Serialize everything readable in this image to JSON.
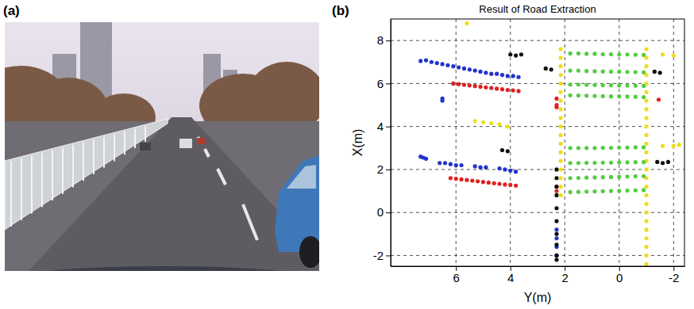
{
  "panels": {
    "a": {
      "label": "(a)"
    },
    "b": {
      "label": "(b)"
    }
  },
  "chart_data": {
    "type": "scatter",
    "title": "Result of Road Extraction",
    "x_label": "Y(m)",
    "y_label": "X(m)",
    "xlim": [
      8.4,
      -2.4
    ],
    "ylim": [
      -2.5,
      9.0
    ],
    "xticks": [
      6,
      4,
      2,
      0,
      -2
    ],
    "yticks": [
      -2,
      0,
      2,
      4,
      6,
      8
    ],
    "grid": true,
    "marker": "circle",
    "series": [
      {
        "color": "#2233cc",
        "x": [
          7.3,
          7.1,
          6.9,
          6.7,
          6.5,
          6.3,
          6.1,
          5.9,
          5.7,
          5.5,
          5.3,
          5.1,
          4.9,
          4.7,
          4.5,
          4.3,
          4.1,
          3.9,
          3.7,
          6.5,
          6.5,
          7.3,
          7.2,
          7.1,
          6.6,
          6.4,
          6.2,
          6.0,
          5.8,
          5.3,
          5.1,
          4.9,
          4.4,
          4.2,
          4.0,
          3.8,
          2.3,
          2.3,
          2.3,
          2.3
        ],
        "values": [
          7.05,
          7.08,
          7.0,
          6.95,
          6.9,
          6.85,
          6.8,
          6.75,
          6.7,
          6.65,
          6.6,
          6.55,
          6.5,
          6.45,
          6.45,
          6.4,
          6.35,
          6.35,
          6.3,
          5.3,
          5.2,
          2.6,
          2.55,
          2.5,
          2.3,
          2.3,
          2.25,
          2.2,
          2.2,
          2.15,
          2.1,
          2.1,
          2.05,
          2.0,
          1.95,
          1.9,
          -0.8,
          -1.2,
          -1.6,
          -2.0
        ]
      },
      {
        "color": "#dd2222",
        "x": [
          6.1,
          5.9,
          5.7,
          5.5,
          5.3,
          5.1,
          4.9,
          4.7,
          4.5,
          4.3,
          4.1,
          3.9,
          3.7,
          6.2,
          6.0,
          5.8,
          5.6,
          5.4,
          5.2,
          5.0,
          4.8,
          4.6,
          4.4,
          4.2,
          4.0,
          3.8,
          2.3,
          2.3,
          2.3,
          2.3,
          2.3,
          -1.45
        ],
        "values": [
          6.0,
          5.97,
          5.94,
          5.91,
          5.88,
          5.85,
          5.82,
          5.79,
          5.76,
          5.73,
          5.7,
          5.68,
          5.65,
          1.6,
          1.57,
          1.54,
          1.51,
          1.48,
          1.45,
          1.42,
          1.39,
          1.36,
          1.33,
          1.3,
          1.28,
          1.25,
          5.3,
          5.0,
          4.9,
          1.2,
          1.0,
          5.25
        ]
      },
      {
        "color": "#111111",
        "x": [
          4.0,
          3.8,
          3.6,
          2.7,
          2.5,
          4.3,
          4.1,
          2.3,
          2.3,
          2.3,
          2.3,
          2.3,
          2.3,
          2.3,
          2.3,
          2.3,
          2.3,
          -1.3,
          -1.5,
          -1.4,
          -1.6,
          -1.8
        ],
        "values": [
          7.35,
          7.3,
          7.35,
          6.7,
          6.65,
          2.9,
          2.85,
          2.0,
          1.6,
          1.2,
          0.8,
          0.2,
          -0.4,
          -1.0,
          -1.5,
          -2.0,
          -2.2,
          6.55,
          6.5,
          2.35,
          2.3,
          2.35
        ]
      },
      {
        "color": "#eedd22",
        "x": [
          5.6,
          5.3,
          5.0,
          4.7,
          4.4,
          4.1,
          2.15,
          2.15,
          2.15,
          2.15,
          2.15,
          2.15,
          2.15,
          2.15,
          2.15,
          2.15,
          2.15,
          2.15,
          2.15,
          2.15,
          2.15,
          2.15,
          2.15,
          2.15,
          -1.0,
          -1.0,
          -1.0,
          -1.0,
          -1.0,
          -1.0,
          -1.0,
          -1.0,
          -1.0,
          -1.0,
          -1.0,
          -1.0,
          -1.0,
          -1.0,
          -1.0,
          -1.0,
          -1.0,
          -1.0,
          -1.0,
          -1.0,
          -1.0,
          -1.0,
          -1.0,
          -1.0,
          -1.0,
          -1.0,
          -1.6,
          -2.0,
          -1.6,
          -2.0,
          -2.2
        ],
        "values": [
          8.8,
          4.25,
          4.2,
          4.15,
          4.1,
          4.0,
          7.6,
          7.2,
          6.8,
          6.4,
          6.0,
          5.6,
          5.2,
          4.8,
          4.4,
          4.0,
          3.6,
          3.2,
          2.8,
          2.4,
          2.0,
          1.6,
          1.2,
          0.8,
          7.6,
          7.2,
          6.8,
          6.4,
          6.0,
          5.6,
          5.2,
          4.8,
          4.4,
          4.0,
          3.6,
          3.2,
          2.8,
          2.4,
          2.0,
          1.6,
          1.2,
          0.8,
          0.4,
          0.0,
          -0.4,
          -0.8,
          -1.2,
          -1.6,
          -2.0,
          -2.4,
          7.35,
          7.3,
          3.1,
          3.1,
          3.15
        ]
      },
      {
        "color": "#55cc44",
        "x": [
          1.8,
          1.5,
          1.2,
          0.9,
          0.6,
          0.3,
          0,
          -0.3,
          -0.6,
          -0.9,
          1.8,
          1.5,
          1.2,
          0.9,
          0.6,
          0.3,
          0,
          -0.3,
          -0.6,
          -0.9,
          1.8,
          1.5,
          1.2,
          0.9,
          0.6,
          0.3,
          0,
          -0.3,
          -0.6,
          -0.9,
          1.8,
          1.5,
          1.2,
          0.9,
          0.6,
          0.3,
          0,
          -0.3,
          -0.6,
          -0.9,
          1.8,
          1.5,
          1.2,
          0.9,
          0.6,
          0.3,
          0,
          -0.3,
          -0.6,
          -0.9,
          1.8,
          1.5,
          1.2,
          0.9,
          0.6,
          0.3,
          0,
          -0.3,
          -0.6,
          -0.9,
          1.8,
          1.5,
          1.2,
          0.9,
          0.6,
          0.3,
          0,
          -0.3,
          -0.6,
          -0.9,
          1.8,
          1.5,
          1.2,
          0.9,
          0.6,
          0.3,
          0,
          -0.3,
          -0.6,
          -0.9
        ],
        "values": [
          7.4,
          7.4,
          7.38,
          7.38,
          7.36,
          7.36,
          7.35,
          7.35,
          7.34,
          7.33,
          6.6,
          6.6,
          6.58,
          6.57,
          6.56,
          6.55,
          6.55,
          6.54,
          6.53,
          6.52,
          5.95,
          5.95,
          5.94,
          5.93,
          5.92,
          5.92,
          5.91,
          5.9,
          5.9,
          5.89,
          5.45,
          5.44,
          5.43,
          5.42,
          5.41,
          5.4,
          5.4,
          5.39,
          5.38,
          5.37,
          3.0,
          3.0,
          3.0,
          3.0,
          3.01,
          3.01,
          3.02,
          3.02,
          3.03,
          3.03,
          2.3,
          2.3,
          2.31,
          2.31,
          2.32,
          2.32,
          2.33,
          2.33,
          2.34,
          2.34,
          1.6,
          1.61,
          1.62,
          1.63,
          1.64,
          1.65,
          1.66,
          1.67,
          1.68,
          1.69,
          0.95,
          0.96,
          0.97,
          0.98,
          0.99,
          1.0,
          1.01,
          1.02,
          1.03,
          1.04
        ]
      }
    ]
  }
}
